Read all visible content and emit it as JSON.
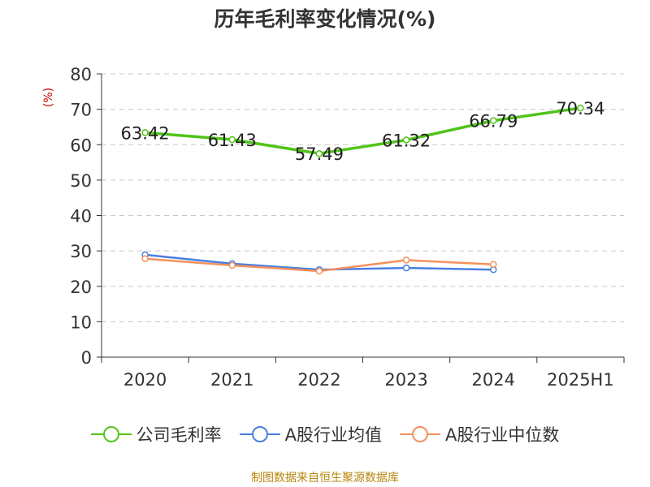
{
  "chart_data": {
    "type": "line",
    "title": "历年毛利率变化情况(%)",
    "ylabel": "(%)",
    "xlabel": "",
    "categories": [
      "2020",
      "2021",
      "2022",
      "2023",
      "2024",
      "2025H1"
    ],
    "ylim": [
      0,
      80
    ],
    "yticks": [
      0,
      10,
      20,
      30,
      40,
      50,
      60,
      70,
      80
    ],
    "grid": true,
    "legend_position": "bottom",
    "series": [
      {
        "name": "公司毛利率",
        "color": "#52c41a",
        "values": [
          63.42,
          61.43,
          57.49,
          61.32,
          66.79,
          70.34
        ],
        "labels": [
          "63.42",
          "61.43",
          "57.49",
          "61.32",
          "66.79",
          "70.34"
        ]
      },
      {
        "name": "A股行业均值",
        "color": "#4a7fe0",
        "values": [
          28.9,
          26.4,
          24.7,
          25.2,
          24.7,
          null
        ]
      },
      {
        "name": "A股行业中位数",
        "color": "#f4915e",
        "values": [
          27.8,
          25.9,
          24.3,
          27.4,
          26.2,
          null
        ]
      }
    ]
  },
  "footer": {
    "source": "制图数据来自恒生聚源数据库"
  }
}
